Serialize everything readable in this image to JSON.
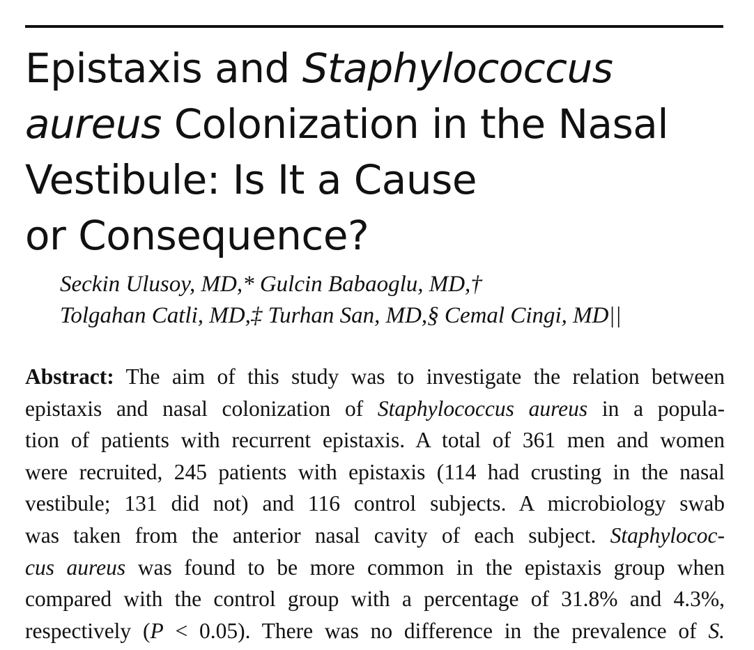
{
  "title": {
    "l1_a": "Epistaxis and ",
    "l1_b": "Staphylococcus",
    "l2_a": "aureus",
    "l2_b": " Colonization in the Nasal",
    "l3": "Vestibule: Is It a Cause",
    "l4": "or Consequence?"
  },
  "authors": {
    "line1": "Seckin Ulusoy, MD,* Gulcin Babaoglu, MD,†",
    "line2": "Tolgahan Catli, MD,‡ Turhan San, MD,§ Cemal Cingi, MD||"
  },
  "abstract": {
    "heading": "Abstract:",
    "l1": " The aim of this study was to investigate the relation between",
    "l2_a": "epistaxis and nasal colonization of ",
    "l2_b": "Staphylococcus aureus",
    "l2_c": " in a popula-",
    "l3": "tion of patients with recurrent epistaxis. A total of 361 men and women",
    "l4": "were recruited, 245 patients with epistaxis (114 had crusting in the nasal",
    "l5": "vestibule; 131 did not) and 116 control subjects. A microbiology swab",
    "l6_a": "was taken from the anterior nasal cavity of each subject. ",
    "l6_b": "Staphylococ-",
    "l7_a": "cus aureus",
    "l7_b": " was found to be more common in the epistaxis group when",
    "l8": "compared with the control group with a percentage of 31.8% and 4.3%,",
    "l9_a": "respectively (",
    "l9_b": "P",
    "l9_c": " < 0.05). There was no difference in the prevalence of ",
    "l9_d": "S."
  }
}
